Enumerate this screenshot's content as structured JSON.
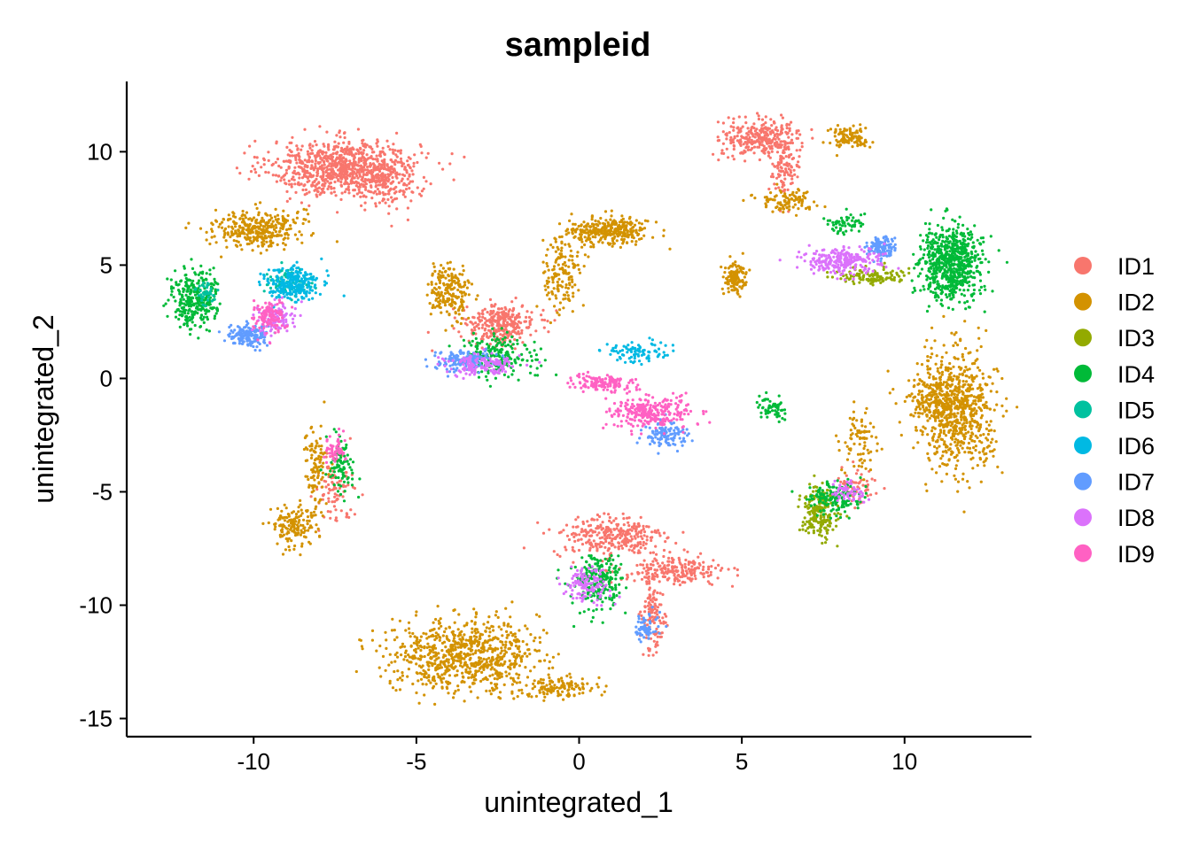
{
  "chart_data": {
    "type": "scatter",
    "title": "sampleid",
    "xlabel": "unintegrated_1",
    "ylabel": "unintegrated_2",
    "xlim": [
      -13.9,
      13.9
    ],
    "ylim": [
      -15.8,
      13.1
    ],
    "x_ticks": [
      -10,
      -5,
      0,
      5,
      10
    ],
    "x_tick_labels": [
      "-10",
      "-5",
      "0",
      "5",
      "10"
    ],
    "y_ticks": [
      -15,
      -10,
      -5,
      0,
      5,
      10
    ],
    "y_tick_labels": [
      "-15",
      "-10",
      "-5",
      "0",
      "5",
      "10"
    ],
    "grid": false,
    "legend_position": "right",
    "series": [
      {
        "name": "ID1",
        "color": "#F8766D",
        "clusters": [
          [
            -7.2,
            9.3,
            1.9,
            1.0,
            900
          ],
          [
            -5.9,
            8.5,
            0.6,
            1.1,
            120
          ],
          [
            5.6,
            10.6,
            1.0,
            0.7,
            300
          ],
          [
            6.3,
            9.2,
            0.4,
            1.0,
            100
          ],
          [
            -2.4,
            2.4,
            0.9,
            0.7,
            300
          ],
          [
            1.0,
            -7.0,
            1.4,
            0.8,
            300
          ],
          [
            2.9,
            -8.5,
            1.4,
            0.5,
            220
          ],
          [
            2.3,
            -10.5,
            0.3,
            1.3,
            120
          ],
          [
            -7.6,
            -4.8,
            0.5,
            1.3,
            100
          ],
          [
            8.6,
            -4.7,
            0.5,
            0.7,
            60
          ]
        ]
      },
      {
        "name": "ID2",
        "color": "#D39200",
        "clusters": [
          [
            -9.9,
            6.6,
            1.1,
            0.7,
            350
          ],
          [
            -3.5,
            -12.2,
            1.9,
            1.3,
            800
          ],
          [
            -0.6,
            -13.6,
            0.9,
            0.4,
            120
          ],
          [
            11.6,
            -1.4,
            1.0,
            2.2,
            650
          ],
          [
            11.1,
            -1.0,
            0.9,
            0.9,
            200
          ],
          [
            0.9,
            6.5,
            1.0,
            0.5,
            320
          ],
          [
            -0.5,
            4.6,
            0.5,
            1.4,
            150
          ],
          [
            -4.0,
            3.9,
            0.5,
            1.0,
            200
          ],
          [
            4.8,
            4.4,
            0.3,
            0.6,
            130
          ],
          [
            -8.8,
            -6.5,
            0.6,
            0.8,
            150
          ],
          [
            -8.1,
            -4.0,
            0.3,
            1.4,
            100
          ],
          [
            8.3,
            10.6,
            0.5,
            0.4,
            110
          ],
          [
            6.3,
            7.8,
            0.8,
            0.4,
            100
          ],
          [
            8.6,
            -2.8,
            0.4,
            1.5,
            80
          ]
        ]
      },
      {
        "name": "ID3",
        "color": "#93AA00",
        "clusters": [
          [
            7.4,
            -5.9,
            0.5,
            0.9,
            200
          ],
          [
            9.0,
            4.5,
            0.9,
            0.3,
            120
          ]
        ]
      },
      {
        "name": "ID4",
        "color": "#00BA38",
        "clusters": [
          [
            11.4,
            5.1,
            0.8,
            1.3,
            700
          ],
          [
            -11.8,
            3.5,
            0.6,
            1.0,
            300
          ],
          [
            -2.5,
            1.0,
            0.9,
            0.8,
            200
          ],
          [
            0.6,
            -9.0,
            0.7,
            1.0,
            220
          ],
          [
            7.8,
            -5.3,
            0.7,
            0.6,
            150
          ],
          [
            -7.3,
            -3.8,
            0.3,
            1.1,
            90
          ],
          [
            5.9,
            -1.3,
            0.4,
            0.4,
            60
          ],
          [
            8.1,
            6.8,
            0.5,
            0.4,
            60
          ]
        ]
      },
      {
        "name": "ID5",
        "color": "#00C19F",
        "clusters": [
          [
            -9.0,
            4.3,
            0.6,
            0.5,
            80
          ],
          [
            -11.5,
            3.8,
            0.3,
            0.4,
            40
          ]
        ]
      },
      {
        "name": "ID6",
        "color": "#00B9E3",
        "clusters": [
          [
            -8.8,
            4.2,
            0.7,
            0.6,
            260
          ],
          [
            1.8,
            1.1,
            0.9,
            0.4,
            90
          ]
        ]
      },
      {
        "name": "ID7",
        "color": "#619CFF",
        "clusters": [
          [
            -10.2,
            1.9,
            0.5,
            0.4,
            180
          ],
          [
            2.6,
            -2.5,
            0.5,
            0.5,
            120
          ],
          [
            -3.5,
            0.8,
            0.8,
            0.4,
            160
          ],
          [
            9.3,
            5.8,
            0.4,
            0.4,
            120
          ],
          [
            2.0,
            -11.0,
            0.3,
            0.5,
            60
          ]
        ]
      },
      {
        "name": "ID8",
        "color": "#DB72FB",
        "clusters": [
          [
            8.0,
            5.2,
            1.0,
            0.5,
            250
          ],
          [
            -3.0,
            0.6,
            0.9,
            0.4,
            150
          ],
          [
            0.2,
            -9.1,
            0.6,
            0.6,
            120
          ],
          [
            -9.3,
            2.6,
            0.5,
            0.6,
            100
          ],
          [
            8.3,
            -5.0,
            0.5,
            0.4,
            60
          ]
        ]
      },
      {
        "name": "ID9",
        "color": "#FF61C3",
        "clusters": [
          [
            2.2,
            -1.5,
            1.0,
            0.6,
            280
          ],
          [
            0.8,
            -0.2,
            0.9,
            0.3,
            150
          ],
          [
            -9.5,
            2.7,
            0.4,
            0.6,
            120
          ],
          [
            -7.5,
            -3.2,
            0.3,
            0.6,
            50
          ]
        ]
      }
    ]
  }
}
